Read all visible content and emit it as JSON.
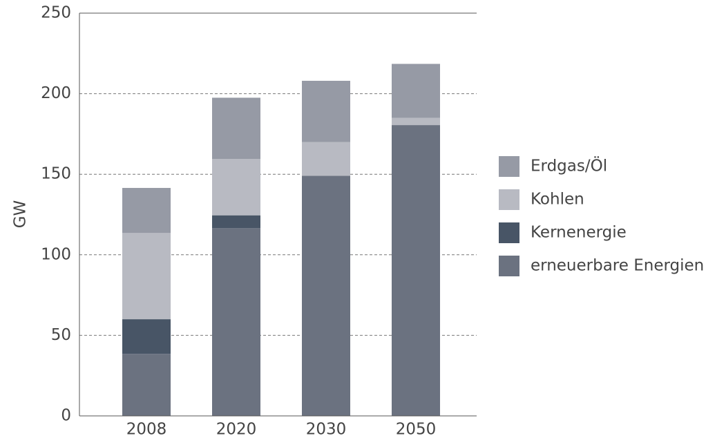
{
  "chart_data": {
    "type": "bar",
    "stacked": true,
    "categories": [
      "2008",
      "2020",
      "2030",
      "2050"
    ],
    "series": [
      {
        "name": "Erdgas/Öl",
        "color": "#969aa5",
        "values": [
          28,
          38,
          38,
          33.5
        ]
      },
      {
        "name": "Kohlen",
        "color": "#b8bac2",
        "values": [
          53.5,
          35,
          21,
          4.5
        ]
      },
      {
        "name": "Kernenergie",
        "color": "#485566",
        "values": [
          21.5,
          8,
          0,
          0
        ]
      },
      {
        "name": "erneuerbare Energien",
        "color": "#6b7280",
        "values": [
          38.5,
          116.5,
          149,
          180.5
        ]
      }
    ],
    "ylabel": "GW",
    "ylim": [
      0,
      250
    ],
    "yticks": [
      0,
      50,
      100,
      150,
      200,
      250
    ],
    "grid": true,
    "legend": "right"
  }
}
